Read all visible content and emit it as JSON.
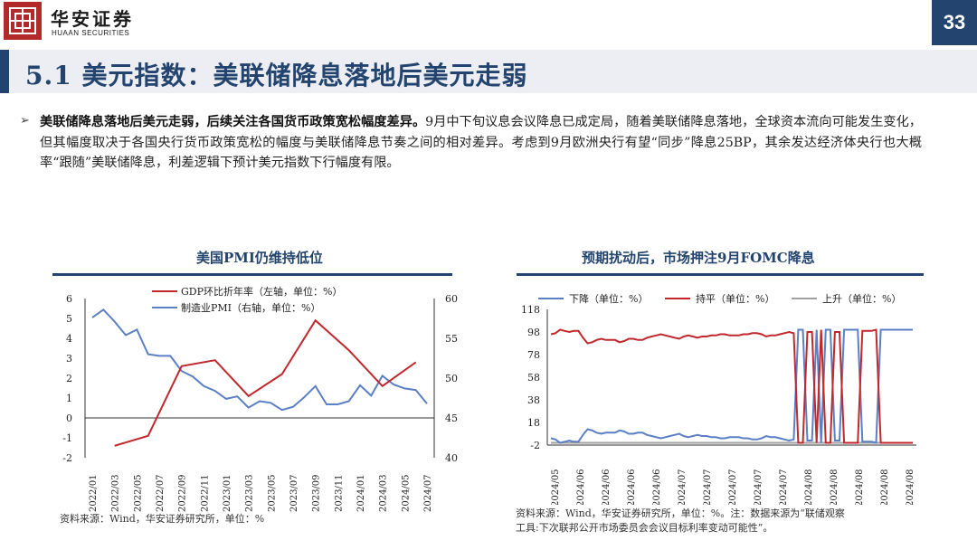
{
  "header": {
    "brand_cn": "华安证券",
    "brand_en": "HUAAN SECURITIES",
    "page_number": "33"
  },
  "title": "5.1 美元指数：美联储降息落地后美元走弱",
  "paragraph": {
    "bold": "美联储降息落地后美元走弱，后续关注各国货币政策宽松幅度差异。",
    "text": "9月中下旬议息会议降息已成定局，随着美联储降息落地，全球资本流向可能发生变化，但其幅度取决于各国央行货币政策宽松的幅度与美联储降息节奏之间的相对差异。考虑到9月欧洲央行有望“同步”降息25BP，其余发达经济体央行也大概率“跟随”美联储降息，利差逻辑下预计美元指数下行幅度有限。"
  },
  "left_chart": {
    "title": "美国PMI仍维持低位",
    "source": "资料来源：Wind，华安证券研究所，单位：%"
  },
  "right_chart": {
    "title": "预期扰动后，市场押注9月FOMC降息",
    "source_line1": "资料来源：Wind，华安证券研究所，单位：%。注：数据来源为“联储观察",
    "source_line2": "工具:下次联邦公开市场委员会会议目标利率变动可能性”。"
  },
  "colors": {
    "navy": "#23446e",
    "red": "#c0282d",
    "blue": "#5b7fc4",
    "gray": "#a0a0a0"
  },
  "chart_data": [
    {
      "type": "line",
      "title": "美国PMI仍维持低位",
      "categories": [
        "2022/01",
        "2022/02",
        "2022/03",
        "2022/04",
        "2022/05",
        "2022/06",
        "2022/07",
        "2022/08",
        "2022/09",
        "2022/10",
        "2022/11",
        "2022/12",
        "2023/01",
        "2023/02",
        "2023/03",
        "2023/04",
        "2023/05",
        "2023/06",
        "2023/07",
        "2023/08",
        "2023/09",
        "2023/10",
        "2023/11",
        "2023/12",
        "2024/01",
        "2024/02",
        "2024/03",
        "2024/04",
        "2024/05",
        "2024/06",
        "2024/07"
      ],
      "tick_labels": [
        "2022/01",
        "2022/03",
        "2022/05",
        "2022/07",
        "2022/09",
        "2022/11",
        "2023/01",
        "2023/03",
        "2023/05",
        "2023/07",
        "2023/09",
        "2023/11",
        "2024/01",
        "2024/03",
        "2024/05",
        "2024/07"
      ],
      "series": [
        {
          "name": "GDP环比折年率（左轴，单位：%）",
          "axis": "left",
          "color": "#c0282d",
          "points": [
            [
              2,
              -1.4
            ],
            [
              5,
              -0.9
            ],
            [
              8,
              2.6
            ],
            [
              11,
              2.9
            ],
            [
              14,
              1.1
            ],
            [
              17,
              2.2
            ],
            [
              20,
              4.9
            ],
            [
              23,
              3.4
            ],
            [
              26,
              1.6
            ],
            [
              29,
              2.8
            ]
          ]
        },
        {
          "name": "制造业PMI（右轴，单位：%）",
          "axis": "right",
          "color": "#5b7fc4",
          "values": [
            57.6,
            58.6,
            57.1,
            55.4,
            56.1,
            53.0,
            52.8,
            52.8,
            50.9,
            50.2,
            49.0,
            48.4,
            47.4,
            47.7,
            46.3,
            47.1,
            46.9,
            46.0,
            46.4,
            47.6,
            49.0,
            46.7,
            46.7,
            47.1,
            49.1,
            47.8,
            50.3,
            49.2,
            48.7,
            48.5,
            46.8
          ]
        }
      ],
      "ylim_left": [
        -2,
        6
      ],
      "ylim_right": [
        40,
        60
      ],
      "yticks_left": [
        -2,
        -1,
        0,
        1,
        2,
        3,
        4,
        5,
        6
      ],
      "yticks_right": [
        40,
        45,
        50,
        55,
        60
      ],
      "legend": "top-center"
    },
    {
      "type": "line",
      "title": "预期扰动后，市场押注9月FOMC降息",
      "tick_labels": [
        "2024/05",
        "2024/06",
        "2024/06",
        "2024/06",
        "2024/06",
        "2024/07",
        "2024/07",
        "2024/07",
        "2024/07",
        "2024/07",
        "2024/08",
        "2024/08",
        "2024/08",
        "2024/08",
        "2024/08"
      ],
      "ylim": [
        -2,
        118
      ],
      "yticks": [
        -2,
        18,
        38,
        58,
        78,
        98,
        118
      ],
      "series": [
        {
          "name": "下降（单位：%）",
          "color": "#5b7fc4",
          "values": [
            4,
            3,
            0,
            1,
            2,
            1,
            1,
            7,
            12,
            11,
            9,
            8,
            9,
            9,
            9,
            11,
            10,
            8,
            8,
            9,
            9,
            7,
            6,
            5,
            4,
            5,
            6,
            7,
            8,
            6,
            5,
            6,
            7,
            6,
            6,
            5,
            5,
            4,
            4,
            5,
            5,
            5,
            4,
            4,
            3,
            3,
            4,
            6,
            5,
            5,
            4,
            3,
            2,
            3,
            100,
            100,
            2,
            2,
            100,
            0,
            100,
            100,
            2,
            2,
            100,
            100,
            100,
            100,
            1,
            1,
            1,
            0,
            100,
            100,
            100,
            100,
            100,
            100,
            100,
            100
          ]
        },
        {
          "name": "持平（单位：%）",
          "color": "#c0282d",
          "values": [
            96,
            97,
            100,
            99,
            98,
            99,
            99,
            93,
            88,
            89,
            91,
            92,
            91,
            91,
            91,
            89,
            90,
            92,
            92,
            91,
            91,
            93,
            94,
            95,
            96,
            95,
            94,
            93,
            92,
            94,
            95,
            94,
            93,
            94,
            94,
            95,
            95,
            96,
            96,
            95,
            95,
            95,
            96,
            96,
            97,
            97,
            96,
            94,
            95,
            95,
            96,
            97,
            98,
            97,
            0,
            0,
            98,
            98,
            0,
            100,
            0,
            0,
            98,
            98,
            0,
            0,
            0,
            0,
            99,
            99,
            99,
            100,
            0,
            0,
            0,
            0,
            0,
            0,
            0,
            0
          ]
        },
        {
          "name": "上升（单位：%）",
          "color": "#a0a0a0",
          "values": [
            0,
            0,
            0,
            0,
            0,
            0,
            0,
            0,
            0,
            0,
            0,
            0,
            0,
            0,
            0,
            0,
            0,
            0,
            0,
            0,
            0,
            0,
            0,
            0,
            0,
            0,
            0,
            0,
            0,
            0,
            0,
            0,
            0,
            0,
            0,
            0,
            0,
            0,
            0,
            0,
            0,
            0,
            0,
            0,
            0,
            0,
            0,
            0,
            0,
            0,
            0,
            0,
            0,
            0,
            0,
            0,
            0,
            0,
            0,
            0,
            0,
            0,
            0,
            0,
            0,
            0,
            0,
            0,
            0,
            0,
            0,
            0,
            0,
            0,
            0,
            0,
            0,
            0,
            0,
            0
          ]
        }
      ],
      "legend": "top"
    }
  ]
}
